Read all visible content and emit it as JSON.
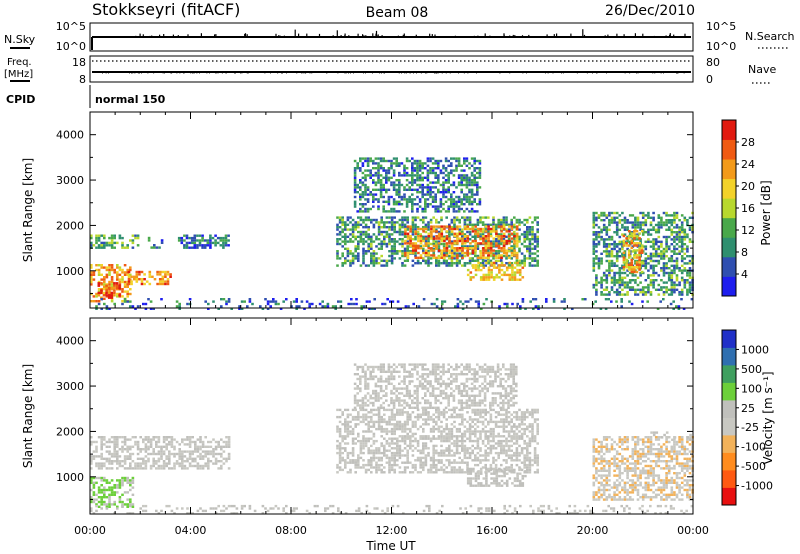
{
  "header": {
    "station": "Stokkseyri (fitACF)",
    "beam": "Beam 08",
    "date": "26/Dec/2010"
  },
  "strips": {
    "nsky_label": "N.Sky",
    "nsky_ticks": [
      "10^5",
      "10^0"
    ],
    "nsearch_label": "N.Search",
    "nsearch_ticks": [
      "10^5",
      "10^0"
    ],
    "freq_label_1": "Freq.",
    "freq_label_2": "[MHz]",
    "freq_ticks": [
      "18",
      "8"
    ],
    "nave_label": "Nave",
    "nave_ticks": [
      "80",
      "0"
    ],
    "cpid_label": "CPID",
    "cpid_value": "normal 150"
  },
  "colors": {
    "power": [
      "#1e1eee",
      "#2f4fb0",
      "#2f8f6f",
      "#49a84a",
      "#b8d82e",
      "#f3d22a",
      "#f39a1a",
      "#ef5a12",
      "#e11a10"
    ],
    "velocity": [
      "#e81010",
      "#ff5a12",
      "#ff8c1e",
      "#f2b25a",
      "#c8c8c2",
      "#c0c0bc",
      "#6ccf3a",
      "#3f9f5f",
      "#2f6fb0",
      "#2030c8"
    ]
  },
  "chart_data": [
    {
      "type": "heatmap",
      "name": "power",
      "xlabel": "",
      "ylabel": "Slant Range [km]",
      "colorbar_label": "Power [dB]",
      "colorbar_ticks": [
        "4",
        "8",
        "12",
        "16",
        "20",
        "24",
        "28"
      ],
      "colorbar_range": [
        0,
        32
      ],
      "xlim": [
        0,
        24
      ],
      "ylim": [
        180,
        4500
      ],
      "y_ticks": [
        1000,
        2000,
        3000,
        4000
      ],
      "x_ticks": [
        "00:00",
        "04:00",
        "08:00",
        "12:00",
        "16:00",
        "20:00",
        "00:00"
      ],
      "regions": [
        {
          "t0": 0.0,
          "t1": 1.6,
          "r0": 350,
          "r1": 1150,
          "value": 22
        },
        {
          "t0": 0.3,
          "t1": 1.2,
          "r0": 400,
          "r1": 750,
          "value": 27
        },
        {
          "t0": 1.5,
          "t1": 3.2,
          "r0": 700,
          "r1": 1000,
          "value": 24
        },
        {
          "t0": 0.0,
          "t1": 1.9,
          "r0": 1500,
          "r1": 1800,
          "value": 12
        },
        {
          "t0": 2.3,
          "t1": 2.9,
          "r0": 1500,
          "r1": 1750,
          "value": 8
        },
        {
          "t0": 3.5,
          "t1": 5.5,
          "r0": 1500,
          "r1": 1800,
          "value": 7
        },
        {
          "t0": 9.8,
          "t1": 17.8,
          "r0": 1100,
          "r1": 2200,
          "value": 10
        },
        {
          "t0": 12.5,
          "t1": 17.0,
          "r0": 1300,
          "r1": 2000,
          "value": 24
        },
        {
          "t0": 15.0,
          "t1": 17.2,
          "r0": 800,
          "r1": 1200,
          "value": 20
        },
        {
          "t0": 10.5,
          "t1": 15.5,
          "r0": 2300,
          "r1": 3500,
          "value": 8
        },
        {
          "t0": 20.0,
          "t1": 24.0,
          "r0": 500,
          "r1": 2300,
          "value": 10
        },
        {
          "t0": 21.2,
          "t1": 22.0,
          "r0": 1000,
          "r1": 1900,
          "value": 22
        },
        {
          "t0": 0.0,
          "t1": 24.0,
          "r0": 180,
          "r1": 400,
          "value": 6
        }
      ]
    },
    {
      "type": "heatmap",
      "name": "velocity",
      "xlabel": "Time UT",
      "ylabel": "Slant Range [km]",
      "colorbar_label": "Velocity [m s⁻¹]",
      "colorbar_ticks": [
        "-1000",
        "-500",
        "-100",
        "-25",
        "25",
        "100",
        "500",
        "1000"
      ],
      "colorbar_range": [
        -1250,
        1250
      ],
      "xlim": [
        0,
        24
      ],
      "ylim": [
        180,
        4500
      ],
      "y_ticks": [
        1000,
        2000,
        3000,
        4000
      ],
      "x_ticks": [
        "00:00",
        "04:00",
        "08:00",
        "12:00",
        "16:00",
        "20:00",
        "00:00"
      ],
      "regions": [
        {
          "t0": 0.0,
          "t1": 1.7,
          "r0": 350,
          "r1": 1000,
          "value": 300
        },
        {
          "t0": 0.0,
          "t1": 5.5,
          "r0": 1200,
          "r1": 1900,
          "value": 0
        },
        {
          "t0": 9.8,
          "t1": 17.8,
          "r0": 1100,
          "r1": 2500,
          "value": 0
        },
        {
          "t0": 10.5,
          "t1": 17.0,
          "r0": 2500,
          "r1": 3500,
          "value": 0
        },
        {
          "t0": 15.0,
          "t1": 17.3,
          "r0": 800,
          "r1": 1200,
          "value": 60
        },
        {
          "t0": 20.0,
          "t1": 24.0,
          "r0": 500,
          "r1": 1900,
          "value": -200
        },
        {
          "t0": 22.3,
          "t1": 24.0,
          "r0": 1800,
          "r1": 2000,
          "value": 0
        },
        {
          "t0": 0.0,
          "t1": 24.0,
          "r0": 180,
          "r1": 380,
          "value": 40
        }
      ]
    }
  ]
}
